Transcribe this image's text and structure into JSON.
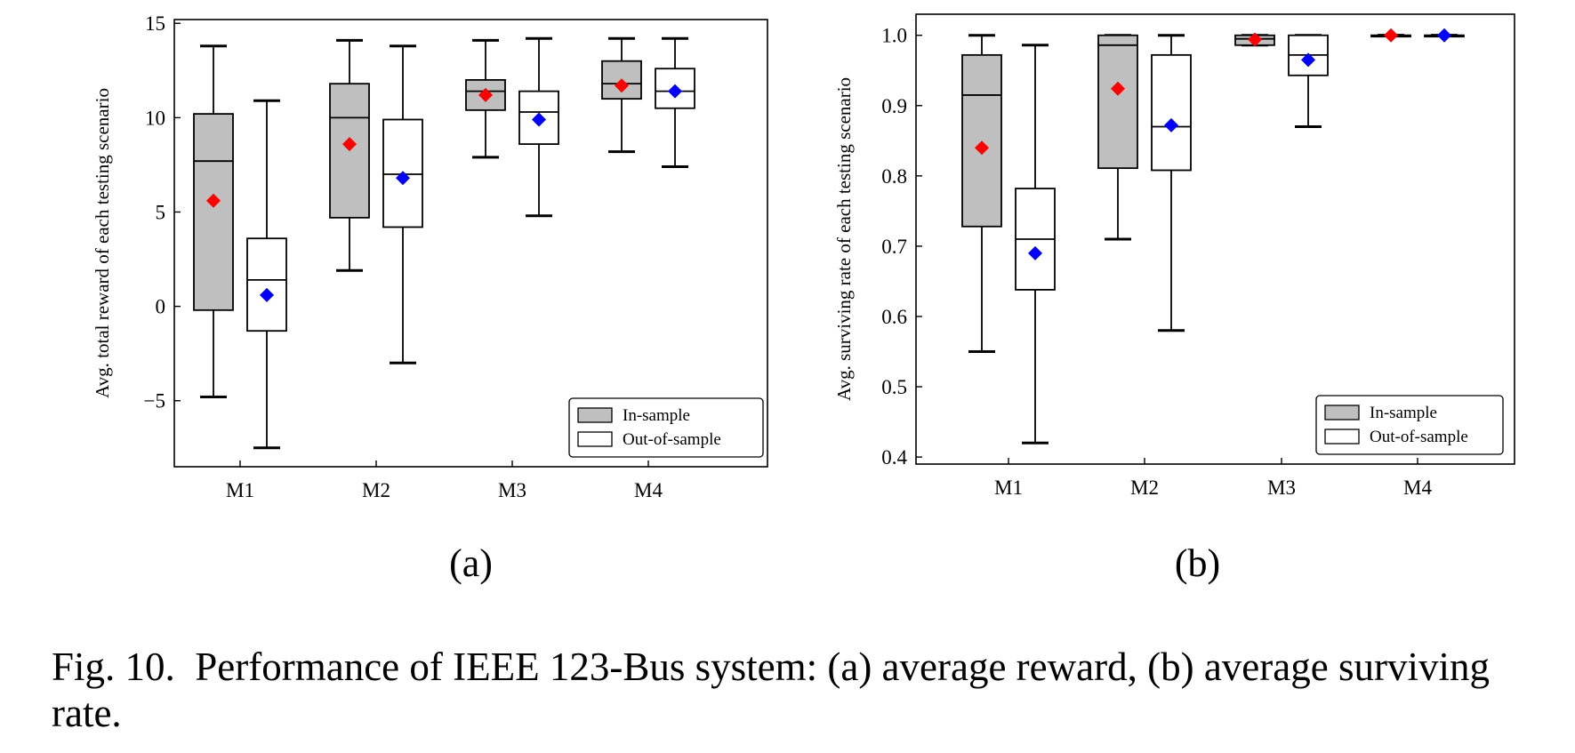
{
  "caption": {
    "label": "Fig. 10.",
    "text": "Performance of IEEE 123-Bus system: (a) average reward, (b) average surviving rate."
  },
  "colors": {
    "in_sample_fill": "#bfbfbf",
    "out_of_sample_fill": "#ffffff",
    "in_sample_mean": "#ff0000",
    "out_of_sample_mean": "#0000ff"
  },
  "chart_data": [
    {
      "type": "box",
      "panel_label": "(a)",
      "ylabel": "Avg. total reward of each testing scenario",
      "xlabel": "",
      "categories": [
        "M1",
        "M2",
        "M3",
        "M4"
      ],
      "ylim": [
        -8.5,
        15.2
      ],
      "yticks": [
        -5,
        0,
        5,
        10,
        15
      ],
      "ytick_labels": [
        "−5",
        "0",
        "5",
        "10",
        "15"
      ],
      "grid": false,
      "legend_placement": "lower-right",
      "series": [
        {
          "name": "In-sample",
          "boxes": [
            {
              "whislo": -4.8,
              "q1": -0.2,
              "med": 7.7,
              "q3": 10.2,
              "whishi": 13.8,
              "mean": 5.6
            },
            {
              "whislo": 1.9,
              "q1": 4.7,
              "med": 10.0,
              "q3": 11.8,
              "whishi": 14.1,
              "mean": 8.6
            },
            {
              "whislo": 7.9,
              "q1": 10.4,
              "med": 11.4,
              "q3": 12.0,
              "whishi": 14.1,
              "mean": 11.2
            },
            {
              "whislo": 8.2,
              "q1": 11.0,
              "med": 11.8,
              "q3": 13.0,
              "whishi": 14.2,
              "mean": 11.7
            }
          ]
        },
        {
          "name": "Out-of-sample",
          "boxes": [
            {
              "whislo": -7.5,
              "q1": -1.3,
              "med": 1.4,
              "q3": 3.6,
              "whishi": 10.9,
              "mean": 0.6
            },
            {
              "whislo": -3.0,
              "q1": 4.2,
              "med": 7.0,
              "q3": 9.9,
              "whishi": 13.8,
              "mean": 6.8
            },
            {
              "whislo": 4.8,
              "q1": 8.6,
              "med": 10.3,
              "q3": 11.4,
              "whishi": 14.2,
              "mean": 9.9
            },
            {
              "whislo": 7.4,
              "q1": 10.5,
              "med": 11.4,
              "q3": 12.6,
              "whishi": 14.2,
              "mean": 11.4
            }
          ]
        }
      ]
    },
    {
      "type": "box",
      "panel_label": "(b)",
      "ylabel": "Avg. surviving rate of each testing scenario",
      "xlabel": "",
      "categories": [
        "M1",
        "M2",
        "M3",
        "M4"
      ],
      "ylim": [
        0.39,
        1.03
      ],
      "yticks": [
        0.4,
        0.5,
        0.6,
        0.7,
        0.8,
        0.9,
        1.0
      ],
      "ytick_labels": [
        "0.4",
        "0.5",
        "0.6",
        "0.7",
        "0.8",
        "0.9",
        "1.0"
      ],
      "grid": false,
      "legend_placement": "lower-right",
      "series": [
        {
          "name": "In-sample",
          "boxes": [
            {
              "whislo": 0.55,
              "q1": 0.728,
              "med": 0.915,
              "q3": 0.972,
              "whishi": 1.0,
              "mean": 0.84
            },
            {
              "whislo": 0.71,
              "q1": 0.811,
              "med": 0.986,
              "q3": 1.0,
              "whishi": 1.0,
              "mean": 0.924
            },
            {
              "whislo": 0.986,
              "q1": 0.986,
              "med": 0.995,
              "q3": 1.0,
              "whishi": 1.0,
              "mean": 0.994
            },
            {
              "whislo": 1.0,
              "q1": 1.0,
              "med": 1.0,
              "q3": 1.0,
              "whishi": 1.0,
              "mean": 1.0
            }
          ]
        },
        {
          "name": "Out-of-sample",
          "boxes": [
            {
              "whislo": 0.42,
              "q1": 0.638,
              "med": 0.71,
              "q3": 0.782,
              "whishi": 0.986,
              "mean": 0.69
            },
            {
              "whislo": 0.58,
              "q1": 0.808,
              "med": 0.87,
              "q3": 0.972,
              "whishi": 1.0,
              "mean": 0.872
            },
            {
              "whislo": 0.87,
              "q1": 0.943,
              "med": 0.972,
              "q3": 1.0,
              "whishi": 1.0,
              "mean": 0.965
            },
            {
              "whislo": 1.0,
              "q1": 1.0,
              "med": 1.0,
              "q3": 1.0,
              "whishi": 1.0,
              "mean": 1.0
            }
          ]
        }
      ]
    }
  ]
}
